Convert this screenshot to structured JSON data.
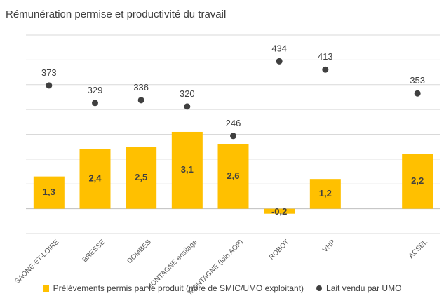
{
  "chart_data": {
    "type": "bar",
    "title": "Rémunération permise et productivité du travail",
    "categories": [
      "SAONE-ET-LOIRE",
      "BRESSE",
      "DOMBES",
      "MONTAGNE ensilage",
      "MONTAGNE (foin AOP)",
      "ROBOT",
      "VHP",
      "ACSEL"
    ],
    "series": [
      {
        "name": "Prélèvements permis par le produit (nbre de SMIC/UMO exploitant)",
        "kind": "bar",
        "axis": "primary",
        "values": [
          1.3,
          2.4,
          2.5,
          3.1,
          2.6,
          -0.2,
          1.2,
          2.2
        ],
        "labels": [
          "1,3",
          "2,4",
          "2,5",
          "3,1",
          "2,6",
          "-0,2",
          "1,2",
          "2,2"
        ],
        "color": "#FFC000"
      },
      {
        "name": "Lait vendu par UMO",
        "kind": "marker",
        "axis": "secondary",
        "values": [
          373,
          329,
          336,
          320,
          246,
          434,
          413,
          353
        ],
        "labels": [
          "373",
          "329",
          "336",
          "320",
          "246",
          "434",
          "413",
          "353"
        ],
        "color": "#404040"
      }
    ],
    "gaps": [
      7
    ],
    "ylim": [
      -1,
      7
    ],
    "y2lim": [
      0,
      500
    ],
    "grid": true,
    "legend": "bottom"
  }
}
